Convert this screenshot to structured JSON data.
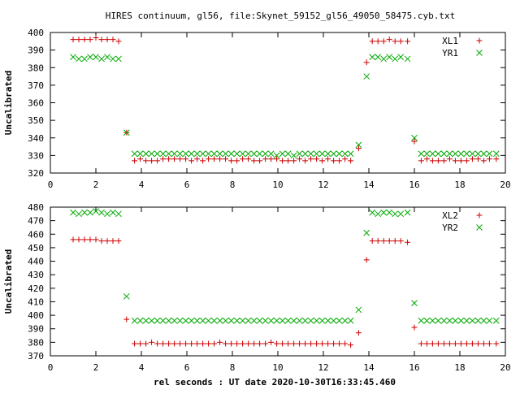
{
  "title": "HIRES continuum, gl56, file:Skynet_59152_gl56_49050_58475.cyb.txt",
  "xlabel": "rel seconds : UT date 2020-10-30T16:33:45.460",
  "colors": {
    "series1": "#cc0000",
    "series2": "#00aa00",
    "axis": "#000000"
  },
  "chart_data": [
    {
      "type": "scatter",
      "ylabel": "Uncalibrated",
      "xlim": [
        0,
        20
      ],
      "ylim": [
        320,
        400
      ],
      "xticks": [
        0,
        2,
        4,
        6,
        8,
        10,
        12,
        14,
        16,
        18,
        20
      ],
      "yticks": [
        320,
        330,
        340,
        350,
        360,
        370,
        380,
        390,
        400
      ],
      "legend_position": "top-right",
      "series": [
        {
          "name": "XL1",
          "marker": "plus",
          "color": "#cc0000",
          "x": [
            1.0,
            1.25,
            1.5,
            1.75,
            2.0,
            2.25,
            2.5,
            2.75,
            3.0,
            3.35,
            3.7,
            3.95,
            4.2,
            4.45,
            4.7,
            4.95,
            5.2,
            5.45,
            5.7,
            5.95,
            6.2,
            6.45,
            6.7,
            6.95,
            7.2,
            7.45,
            7.7,
            7.95,
            8.2,
            8.45,
            8.7,
            8.95,
            9.2,
            9.45,
            9.7,
            9.95,
            10.2,
            10.45,
            10.7,
            10.95,
            11.2,
            11.45,
            11.7,
            11.95,
            12.2,
            12.45,
            12.7,
            12.95,
            13.2,
            13.55,
            13.9,
            14.15,
            14.4,
            14.65,
            14.9,
            15.15,
            15.4,
            15.7,
            16.0,
            16.3,
            16.55,
            16.8,
            17.05,
            17.3,
            17.55,
            17.8,
            18.05,
            18.3,
            18.55,
            18.8,
            19.05,
            19.3,
            19.6
          ],
          "y": [
            396,
            396,
            396,
            396,
            397,
            396,
            396,
            396,
            395,
            343,
            327,
            328,
            327,
            327,
            327,
            328,
            328,
            328,
            328,
            328,
            327,
            328,
            327,
            328,
            328,
            328,
            328,
            327,
            327,
            328,
            328,
            327,
            327,
            328,
            328,
            328,
            327,
            327,
            327,
            328,
            327,
            328,
            328,
            327,
            328,
            327,
            327,
            328,
            327,
            334,
            383,
            395,
            395,
            395,
            396,
            395,
            395,
            395,
            338,
            327,
            328,
            327,
            327,
            327,
            328,
            327,
            327,
            327,
            328,
            328,
            327,
            328,
            328
          ]
        },
        {
          "name": "YR1",
          "marker": "cross",
          "color": "#00aa00",
          "x": [
            1.0,
            1.25,
            1.5,
            1.75,
            2.0,
            2.25,
            2.5,
            2.75,
            3.0,
            3.35,
            3.7,
            3.95,
            4.2,
            4.45,
            4.7,
            4.95,
            5.2,
            5.45,
            5.7,
            5.95,
            6.2,
            6.45,
            6.7,
            6.95,
            7.2,
            7.45,
            7.7,
            7.95,
            8.2,
            8.45,
            8.7,
            8.95,
            9.2,
            9.45,
            9.7,
            9.95,
            10.2,
            10.45,
            10.7,
            10.95,
            11.2,
            11.45,
            11.7,
            11.95,
            12.2,
            12.45,
            12.7,
            12.95,
            13.2,
            13.55,
            13.9,
            14.15,
            14.4,
            14.65,
            14.9,
            15.15,
            15.4,
            15.7,
            16.0,
            16.3,
            16.55,
            16.8,
            17.05,
            17.3,
            17.55,
            17.8,
            18.05,
            18.3,
            18.55,
            18.8,
            19.05,
            19.3,
            19.6
          ],
          "y": [
            386,
            385,
            385,
            386,
            386,
            385,
            386,
            385,
            385,
            343,
            331,
            331,
            331,
            331,
            331,
            331,
            331,
            331,
            331,
            331,
            331,
            331,
            331,
            331,
            331,
            331,
            331,
            331,
            331,
            331,
            331,
            331,
            331,
            331,
            331,
            330,
            331,
            331,
            330,
            331,
            331,
            331,
            331,
            331,
            331,
            331,
            331,
            331,
            331,
            336,
            375,
            386,
            386,
            385,
            386,
            385,
            386,
            385,
            340,
            331,
            331,
            331,
            331,
            331,
            331,
            331,
            331,
            331,
            331,
            331,
            331,
            331,
            331
          ]
        }
      ]
    },
    {
      "type": "scatter",
      "ylabel": "Uncalibrated",
      "xlim": [
        0,
        20
      ],
      "ylim": [
        370,
        480
      ],
      "xticks": [
        0,
        2,
        4,
        6,
        8,
        10,
        12,
        14,
        16,
        18,
        20
      ],
      "yticks": [
        370,
        380,
        390,
        400,
        410,
        420,
        430,
        440,
        450,
        460,
        470,
        480
      ],
      "legend_position": "top-right",
      "series": [
        {
          "name": "XL2",
          "marker": "plus",
          "color": "#cc0000",
          "x": [
            1.0,
            1.25,
            1.5,
            1.75,
            2.0,
            2.25,
            2.5,
            2.75,
            3.0,
            3.35,
            3.7,
            3.95,
            4.2,
            4.45,
            4.7,
            4.95,
            5.2,
            5.45,
            5.7,
            5.95,
            6.2,
            6.45,
            6.7,
            6.95,
            7.2,
            7.45,
            7.7,
            7.95,
            8.2,
            8.45,
            8.7,
            8.95,
            9.2,
            9.45,
            9.7,
            9.95,
            10.2,
            10.45,
            10.7,
            10.95,
            11.2,
            11.45,
            11.7,
            11.95,
            12.2,
            12.45,
            12.7,
            12.95,
            13.2,
            13.55,
            13.9,
            14.15,
            14.4,
            14.65,
            14.9,
            15.15,
            15.4,
            15.7,
            16.0,
            16.3,
            16.55,
            16.8,
            17.05,
            17.3,
            17.55,
            17.8,
            18.05,
            18.3,
            18.55,
            18.8,
            19.05,
            19.3,
            19.6
          ],
          "y": [
            456,
            456,
            456,
            456,
            456,
            455,
            455,
            455,
            455,
            397,
            379,
            379,
            379,
            380,
            379,
            379,
            379,
            379,
            379,
            379,
            379,
            379,
            379,
            379,
            379,
            380,
            379,
            379,
            379,
            379,
            379,
            379,
            379,
            379,
            380,
            379,
            379,
            379,
            379,
            379,
            379,
            379,
            379,
            379,
            379,
            379,
            379,
            379,
            378,
            387,
            441,
            455,
            455,
            455,
            455,
            455,
            455,
            454,
            391,
            379,
            379,
            379,
            379,
            379,
            379,
            379,
            379,
            379,
            379,
            379,
            379,
            379,
            379
          ]
        },
        {
          "name": "YR2",
          "marker": "cross",
          "color": "#00aa00",
          "x": [
            1.0,
            1.25,
            1.5,
            1.75,
            2.0,
            2.25,
            2.5,
            2.75,
            3.0,
            3.35,
            3.7,
            3.95,
            4.2,
            4.45,
            4.7,
            4.95,
            5.2,
            5.45,
            5.7,
            5.95,
            6.2,
            6.45,
            6.7,
            6.95,
            7.2,
            7.45,
            7.7,
            7.95,
            8.2,
            8.45,
            8.7,
            8.95,
            9.2,
            9.45,
            9.7,
            9.95,
            10.2,
            10.45,
            10.7,
            10.95,
            11.2,
            11.45,
            11.7,
            11.95,
            12.2,
            12.45,
            12.7,
            12.95,
            13.2,
            13.55,
            13.9,
            14.15,
            14.4,
            14.65,
            14.9,
            15.15,
            15.4,
            15.7,
            16.0,
            16.3,
            16.55,
            16.8,
            17.05,
            17.3,
            17.55,
            17.8,
            18.05,
            18.3,
            18.55,
            18.8,
            19.05,
            19.3,
            19.6
          ],
          "y": [
            476,
            475,
            476,
            476,
            477,
            476,
            475,
            476,
            475,
            414,
            396,
            396,
            396,
            396,
            396,
            396,
            396,
            396,
            396,
            396,
            396,
            396,
            396,
            396,
            396,
            396,
            396,
            396,
            396,
            396,
            396,
            396,
            396,
            396,
            396,
            396,
            396,
            396,
            396,
            396,
            396,
            396,
            396,
            396,
            396,
            396,
            396,
            396,
            396,
            404,
            461,
            476,
            475,
            476,
            476,
            475,
            475,
            476,
            409,
            396,
            396,
            396,
            396,
            396,
            396,
            396,
            396,
            396,
            396,
            396,
            396,
            396,
            396
          ]
        }
      ]
    }
  ]
}
